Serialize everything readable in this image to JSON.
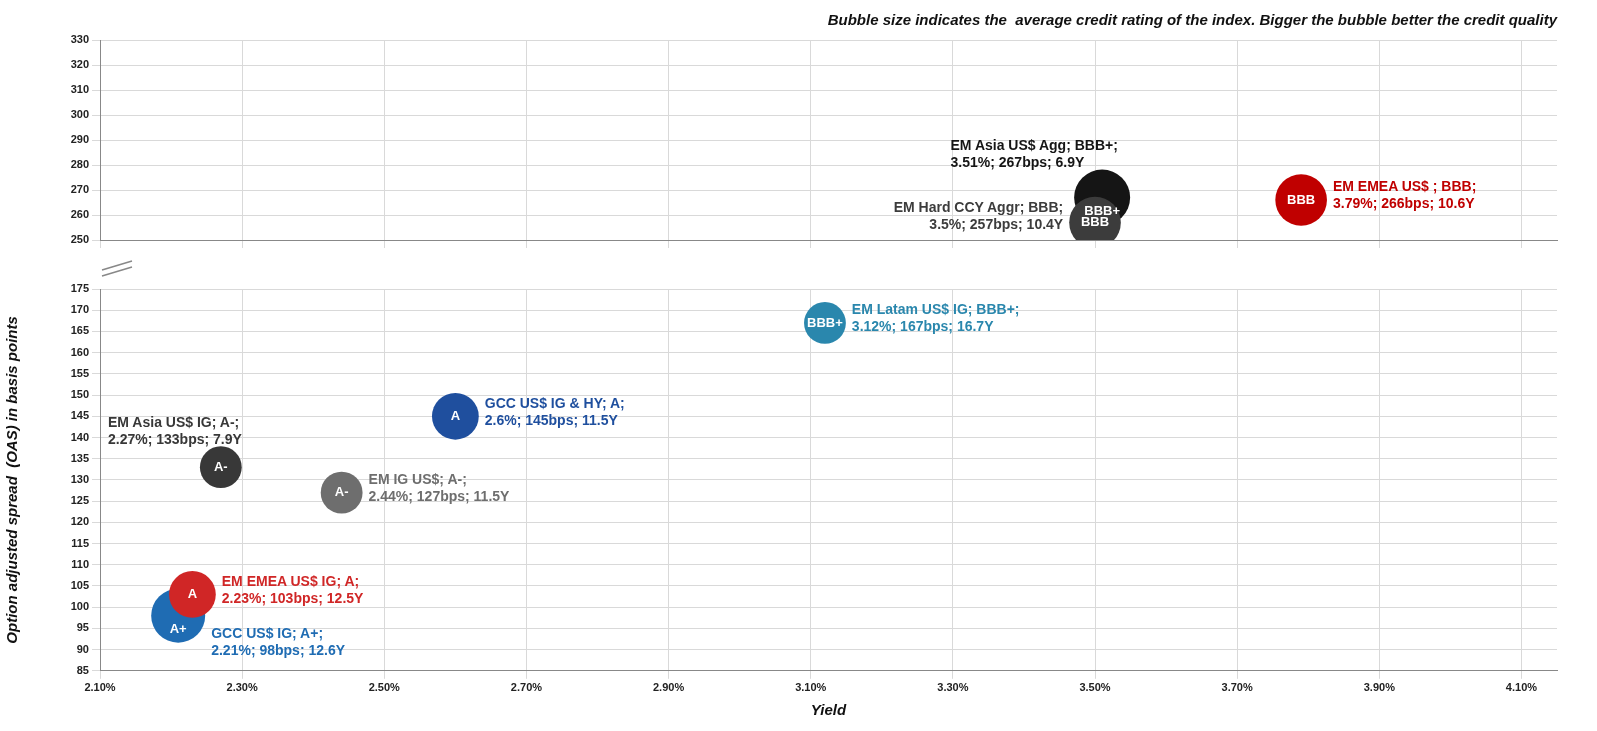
{
  "chart_data": [
    {
      "type": "bubble",
      "title": "Bubble size indicates the  average credit rating of the index. Bigger the bubble better the credit quality",
      "x": [
        3.51,
        3.5,
        3.79
      ],
      "values": [
        267,
        257,
        266
      ],
      "sizes": [
        1,
        0.85,
        0.85
      ],
      "colors": [
        "#151515",
        "#3c3c3c",
        "#c00000"
      ],
      "value_labels": [
        "BBB+",
        "BBB",
        "BBB"
      ],
      "annotations": [
        {
          "text": "EM Asia US$ Agg; BBB+;\n3.51%; 267bps; 6.9Y",
          "x": 3.51,
          "y": 267
        },
        {
          "text": "EM Hard CCY Aggr; BBB;\n3.5%; 257bps; 10.4Y",
          "x": 3.5,
          "y": 257
        },
        {
          "text": "EM EMEA US$ ; BBB;\n3.79%; 266bps; 10.6Y",
          "x": 3.79,
          "y": 266
        }
      ],
      "xlim": [
        2.1,
        4.15
      ],
      "xticks": [
        {
          "value": 2.1,
          "label": null
        },
        {
          "value": 2.3,
          "label": null
        },
        {
          "value": 2.5,
          "label": null
        },
        {
          "value": 2.7,
          "label": null
        },
        {
          "value": 2.9,
          "label": null
        },
        {
          "value": 3.1,
          "label": null
        },
        {
          "value": 3.3,
          "label": null
        },
        {
          "value": 3.5,
          "label": null
        },
        {
          "value": 3.7,
          "label": null
        },
        {
          "value": 3.9,
          "label": null
        },
        {
          "value": 4.1,
          "label": null
        }
      ],
      "ylim": [
        250,
        330
      ],
      "yticks": [
        250,
        260,
        270,
        280,
        290,
        300,
        310,
        320,
        330
      ],
      "grid": true,
      "tick_labels": "y"
    },
    {
      "type": "bubble",
      "xlabel": "Yield",
      "ylabel": "Option adjusted spread  (OAS) in basis points",
      "x": [
        3.12,
        2.6,
        2.27,
        2.44,
        2.21,
        2.23
      ],
      "values": [
        167,
        145,
        133,
        127,
        98,
        103
      ],
      "sizes": [
        0.6,
        0.75,
        0.6,
        0.6,
        1,
        0.75
      ],
      "colors": [
        "#2a87ad",
        "#1f4f9e",
        "#383838",
        "#6e6e6e",
        "#1f6cb3",
        "#d02626"
      ],
      "value_labels": [
        "BBB+",
        "A",
        "A-",
        "A-",
        "A+",
        "A"
      ],
      "annotations": [
        {
          "text": "EM Latam US$ IG; BBB+;\n3.12%; 167bps; 16.7Y",
          "x": 3.12,
          "y": 167
        },
        {
          "text": "GCC US$ IG & HY; A;\n2.6%; 145bps; 11.5Y",
          "x": 2.6,
          "y": 145
        },
        {
          "text": "EM Asia US$ IG; A-;\n2.27%; 133bps; 7.9Y",
          "x": 2.27,
          "y": 133
        },
        {
          "text": "EM IG US$; A-;\n2.44%; 127bps; 11.5Y",
          "x": 2.44,
          "y": 127
        },
        "GCC US$ IG; A+;\n2.21%; 98bps; 12.6Y",
        {
          "text": "EM EMEA US$ IG; A;\n2.23%; 103bps; 12.5Y",
          "x": 2.23,
          "y": 103
        }
      ],
      "xlim": [
        2.1,
        4.15
      ],
      "xticks": [
        {
          "value": 2.1,
          "label": "2.10%"
        },
        {
          "value": 2.3,
          "label": "2.30%"
        },
        {
          "value": 2.5,
          "label": "2.50%"
        },
        {
          "value": 2.7,
          "label": "2.70%"
        },
        {
          "value": 2.9,
          "label": "2.90%"
        },
        {
          "value": 3.1,
          "label": "3.10%"
        },
        {
          "value": 3.3,
          "label": "3.30%"
        },
        {
          "value": 3.5,
          "label": "3.50%"
        },
        {
          "value": 3.7,
          "label": "3.70%"
        },
        {
          "value": 3.9,
          "label": "3.90%"
        },
        {
          "value": 4.1,
          "label": "4.10%"
        }
      ],
      "ylim": [
        85,
        175
      ],
      "yticks": [
        85,
        90,
        95,
        100,
        105,
        110,
        115,
        120,
        125,
        130,
        135,
        140,
        145,
        150,
        155,
        160,
        165,
        170,
        175
      ],
      "grid": true
    }
  ]
}
